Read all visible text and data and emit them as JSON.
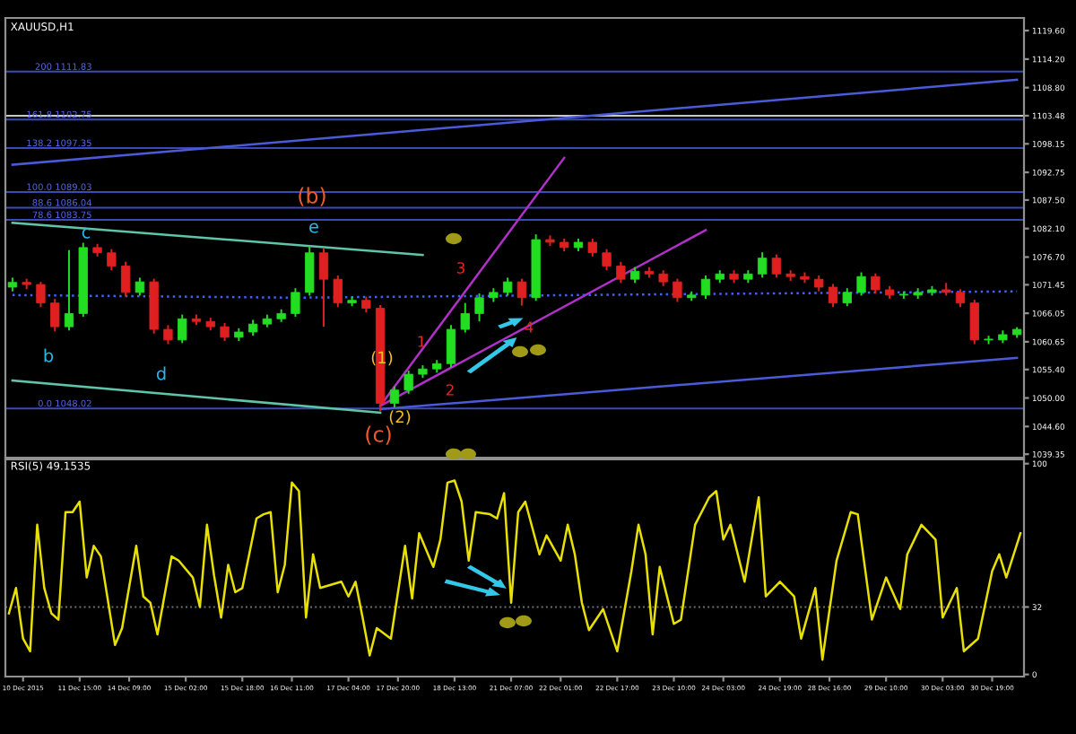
{
  "chart_data": [
    {
      "type": "candlestick",
      "title": "XAUUSD,H1",
      "tick_labels": "y",
      "categories": [
        null,
        null,
        null,
        null,
        null,
        null,
        null,
        null,
        null,
        null,
        null,
        null,
        null,
        null,
        null,
        null,
        null,
        null,
        null,
        null,
        null,
        null,
        null,
        null,
        null,
        null,
        null,
        null,
        null,
        null,
        null,
        null,
        null,
        null,
        null,
        null,
        null,
        null,
        null,
        null,
        null,
        null,
        null,
        null,
        null,
        null,
        null,
        null,
        null,
        null,
        null,
        null,
        null,
        null,
        null,
        null,
        null,
        null,
        null,
        null,
        null,
        null,
        null,
        null,
        null,
        null,
        null,
        null,
        null,
        null,
        null,
        null
      ],
      "ohlc": [
        [
          1071,
          1072.8,
          1070.2,
          1071.9
        ],
        [
          1071.9,
          1072.6,
          1070.6,
          1071.5
        ],
        [
          1071.5,
          1072,
          1067.2,
          1068
        ],
        [
          1068,
          1068.8,
          1062.6,
          1063.5
        ],
        [
          1063.5,
          1078,
          1062.8,
          1066
        ],
        [
          1066,
          1079.4,
          1065.4,
          1078.5
        ],
        [
          1078.5,
          1079.2,
          1076.8,
          1077.5
        ],
        [
          1077.5,
          1078.2,
          1074.2,
          1075
        ],
        [
          1075,
          1075.8,
          1069.2,
          1070
        ],
        [
          1070,
          1072.8,
          1069.4,
          1072
        ],
        [
          1072,
          1072.6,
          1062.2,
          1063
        ],
        [
          1063,
          1063.8,
          1060.2,
          1061
        ],
        [
          1061,
          1065.8,
          1060.4,
          1065
        ],
        [
          1065,
          1065.8,
          1063.8,
          1064.5
        ],
        [
          1064.5,
          1065.2,
          1062.8,
          1063.5
        ],
        [
          1063.5,
          1064.2,
          1060.8,
          1061.5
        ],
        [
          1061.5,
          1063.2,
          1060.8,
          1062.5
        ],
        [
          1062.5,
          1064.8,
          1061.8,
          1064
        ],
        [
          1064,
          1065.8,
          1063.4,
          1065
        ],
        [
          1065,
          1066.8,
          1064.4,
          1066
        ],
        [
          1066,
          1070.8,
          1065.4,
          1070
        ],
        [
          1070,
          1078.8,
          1069.4,
          1077.5
        ],
        [
          1077.5,
          1078.4,
          1063.5,
          1072.5
        ],
        [
          1072.5,
          1073.2,
          1067.2,
          1068
        ],
        [
          1068,
          1069.2,
          1067.4,
          1068.5
        ],
        [
          1068.5,
          1069.2,
          1066.2,
          1067
        ],
        [
          1067,
          1067.6,
          1047.5,
          1049
        ],
        [
          1049,
          1052.2,
          1048.2,
          1051.5
        ],
        [
          1051.5,
          1055.2,
          1050.8,
          1054.5
        ],
        [
          1054.5,
          1056.2,
          1053.8,
          1055.5
        ],
        [
          1055.5,
          1057.2,
          1054.8,
          1056.5
        ],
        [
          1056.5,
          1063.8,
          1055.8,
          1063
        ],
        [
          1063,
          1068,
          1062.4,
          1066
        ],
        [
          1066,
          1069.8,
          1064.5,
          1069
        ],
        [
          1069,
          1070.8,
          1068.2,
          1070
        ],
        [
          1070,
          1072.8,
          1069.4,
          1072
        ],
        [
          1072,
          1072.6,
          1067.5,
          1069
        ],
        [
          1069,
          1081,
          1068.4,
          1080
        ],
        [
          1080,
          1080.8,
          1078.8,
          1079.5
        ],
        [
          1079.5,
          1080.2,
          1077.8,
          1078.5
        ],
        [
          1078.5,
          1080.2,
          1077.8,
          1079.5
        ],
        [
          1079.5,
          1080.2,
          1076.8,
          1077.5
        ],
        [
          1077.5,
          1078.2,
          1074.2,
          1075
        ],
        [
          1075,
          1075.8,
          1071.8,
          1072.5
        ],
        [
          1072.5,
          1074.8,
          1071.8,
          1074
        ],
        [
          1074,
          1074.8,
          1072.8,
          1073.5
        ],
        [
          1073.5,
          1074.2,
          1071.2,
          1072
        ],
        [
          1072,
          1072.6,
          1068.2,
          1069
        ],
        [
          1069,
          1070.2,
          1068.4,
          1069.5
        ],
        [
          1069.5,
          1073.2,
          1068.8,
          1072.5
        ],
        [
          1072.5,
          1074.2,
          1071.8,
          1073.5
        ],
        [
          1073.5,
          1074.2,
          1071.8,
          1072.5
        ],
        [
          1072.5,
          1074.2,
          1071.8,
          1073.5
        ],
        [
          1073.5,
          1077.6,
          1072.8,
          1076.5
        ],
        [
          1076.5,
          1077.2,
          1072.8,
          1073.5
        ],
        [
          1073.5,
          1074.2,
          1072.2,
          1073
        ],
        [
          1073,
          1073.8,
          1071.8,
          1072.5
        ],
        [
          1072.5,
          1073.2,
          1070.2,
          1071
        ],
        [
          1071,
          1071.6,
          1067.2,
          1068
        ],
        [
          1068,
          1070.8,
          1067.4,
          1070
        ],
        [
          1070,
          1073.8,
          1069.4,
          1073
        ],
        [
          1073,
          1073.6,
          1069.8,
          1070.5
        ],
        [
          1070.5,
          1071.2,
          1068.8,
          1069.5
        ],
        [
          1069.5,
          1070.2,
          1068.8,
          1069.5
        ],
        [
          1069.5,
          1070.8,
          1068.8,
          1070
        ],
        [
          1070,
          1071.2,
          1069.4,
          1070.5
        ],
        [
          1070.5,
          1071.8,
          1069.4,
          1070
        ],
        [
          1070,
          1070.6,
          1067.2,
          1068
        ],
        [
          1068,
          1068.6,
          1060.2,
          1061
        ],
        [
          1061,
          1061.8,
          1060.2,
          1061
        ],
        [
          1061,
          1062.8,
          1060.4,
          1062
        ],
        [
          1062,
          1063.4,
          1061.4,
          1063
        ]
      ],
      "ylim": [
        1038.7,
        1122.0
      ],
      "yticks": [
        {
          "value": 1119.6,
          "label": "1119.60"
        },
        {
          "value": 1114.2,
          "label": "1114.20"
        },
        {
          "value": 1108.8,
          "label": "1108.80"
        },
        {
          "value": 1103.48,
          "label": "1103.48"
        },
        {
          "value": 1098.15,
          "label": "1098.15"
        },
        {
          "value": 1092.75,
          "label": "1092.75"
        },
        {
          "value": 1087.5,
          "label": "1087.50"
        },
        {
          "value": 1082.1,
          "label": "1082.10"
        },
        {
          "value": 1076.7,
          "label": "1076.70"
        },
        1071.45,
        1066.05,
        {
          "value": 1060.65,
          "label": "1060.65"
        },
        {
          "value": 1055.4,
          "label": "1055.40"
        },
        {
          "value": 1050.0,
          "label": "1050.00"
        },
        {
          "value": 1044.6,
          "label": "1044.60"
        },
        1039.35
      ],
      "series": [
        {
          "type": "line",
          "color": "#4a5ad8",
          "values": [
            1094.2,
            null,
            null,
            null,
            null,
            null,
            null,
            null,
            null,
            null,
            null,
            null,
            null,
            null,
            null,
            null,
            null,
            null,
            null,
            null,
            null,
            null,
            null,
            null,
            null,
            null,
            null,
            null,
            null,
            null,
            null,
            null,
            null,
            null,
            null,
            null,
            null,
            null,
            null,
            null,
            null,
            null,
            null,
            null,
            null,
            null,
            null,
            null,
            null,
            null,
            null,
            null,
            null,
            null,
            null,
            null,
            null,
            null,
            null,
            null,
            null,
            null,
            null,
            null,
            null,
            null,
            null,
            null,
            null,
            null,
            null,
            1110.3
          ]
        },
        {
          "type": "line",
          "color": "#4a5ad8",
          "values": [
            null,
            null,
            null,
            null,
            null,
            null,
            null,
            null,
            null,
            null,
            null,
            null,
            null,
            null,
            null,
            null,
            null,
            null,
            null,
            null,
            null,
            null,
            null,
            null,
            null,
            null,
            1047.9,
            null,
            null,
            null,
            null,
            null,
            null,
            null,
            null,
            null,
            null,
            null,
            null,
            null,
            null,
            null,
            null,
            null,
            null,
            null,
            null,
            null,
            null,
            null,
            null,
            null,
            null,
            null,
            null,
            null,
            null,
            null,
            null,
            null,
            null,
            null,
            null,
            null,
            null,
            null,
            null,
            null,
            null,
            null,
            null,
            1057.6
          ]
        },
        {
          "type": "line",
          "color": "#5fc4a8",
          "values": [
            1083.2,
            null,
            null,
            null,
            null,
            null,
            null,
            null,
            null,
            null,
            null,
            null,
            null,
            null,
            null,
            null,
            null,
            null,
            null,
            null,
            null,
            null,
            null,
            null,
            null,
            null,
            null,
            null,
            null,
            1077.1,
            null,
            null,
            null,
            null,
            null,
            null,
            null,
            null,
            null,
            null,
            null,
            null,
            null,
            null,
            null,
            null,
            null,
            null,
            null,
            null,
            null,
            null,
            null,
            null,
            null,
            null,
            null,
            null,
            null,
            null,
            null,
            null,
            null,
            null,
            null,
            null,
            null,
            null,
            null,
            null,
            null,
            null
          ]
        },
        {
          "type": "line",
          "color": "#5fc4a8",
          "values": [
            1053.3,
            null,
            null,
            null,
            null,
            null,
            null,
            null,
            null,
            null,
            null,
            null,
            null,
            null,
            null,
            null,
            null,
            null,
            null,
            null,
            null,
            null,
            null,
            null,
            null,
            null,
            1047.2,
            null,
            null,
            null,
            null,
            null,
            null,
            null,
            null,
            null,
            null,
            null,
            null,
            null,
            null,
            null,
            null,
            null,
            null,
            null,
            null,
            null,
            null,
            null,
            null,
            null,
            null,
            null,
            null,
            null,
            null,
            null,
            null,
            null,
            null,
            null,
            null,
            null,
            null,
            null,
            null,
            null,
            null,
            null,
            null,
            null
          ]
        },
        {
          "type": "line",
          "color": "#b030c8",
          "values": [
            null,
            null,
            null,
            null,
            null,
            null,
            null,
            null,
            null,
            null,
            null,
            null,
            null,
            null,
            null,
            null,
            null,
            null,
            null,
            null,
            null,
            null,
            null,
            null,
            null,
            null,
            1048.5,
            null,
            null,
            null,
            null,
            null,
            null,
            null,
            null,
            null,
            null,
            null,
            null,
            1095.5,
            null,
            null,
            null,
            null,
            null,
            null,
            null,
            null,
            null,
            null,
            null,
            null,
            null,
            null,
            null,
            null,
            null,
            null,
            null,
            null,
            null,
            null,
            null,
            null,
            null,
            null,
            null,
            null,
            null,
            null,
            null,
            null
          ]
        },
        {
          "type": "line",
          "color": "#b030c8",
          "values": [
            null,
            null,
            null,
            null,
            null,
            null,
            null,
            null,
            null,
            null,
            null,
            null,
            null,
            null,
            null,
            null,
            null,
            null,
            null,
            null,
            null,
            null,
            null,
            null,
            null,
            null,
            1048.5,
            null,
            null,
            null,
            null,
            null,
            null,
            null,
            null,
            null,
            null,
            null,
            null,
            null,
            null,
            null,
            null,
            null,
            null,
            null,
            null,
            null,
            null,
            1081.8,
            null,
            null,
            null,
            null,
            null,
            null,
            null,
            null,
            null,
            null,
            null,
            null,
            null,
            null,
            null,
            null,
            null,
            null,
            null,
            null,
            null,
            null
          ]
        },
        {
          "type": "line",
          "color": "#4060ff",
          "line_style": "dotted",
          "values": [
            1069.5,
            null,
            null,
            null,
            null,
            null,
            null,
            null,
            null,
            null,
            null,
            null,
            null,
            null,
            null,
            null,
            null,
            null,
            null,
            null,
            1069,
            null,
            null,
            null,
            null,
            null,
            null,
            null,
            null,
            null,
            null,
            null,
            null,
            null,
            null,
            null,
            null,
            null,
            null,
            null,
            1069.5,
            null,
            null,
            null,
            null,
            null,
            null,
            null,
            null,
            null,
            null,
            null,
            null,
            null,
            null,
            null,
            null,
            null,
            null,
            null,
            null,
            null,
            null,
            null,
            null,
            null,
            null,
            null,
            null,
            null,
            null,
            1070.2
          ]
        }
      ],
      "ref_lines": [
        {
          "axis": "y",
          "value": 1111.83,
          "label": "200 1111.83",
          "color": "#3a4bb8"
        },
        {
          "axis": "y",
          "value": 1102.75,
          "label": "161.8 1102.75",
          "color": "#3a4bb8"
        },
        {
          "axis": "y",
          "value": 1103.48,
          "color": "#c8c8c8"
        },
        {
          "axis": "y",
          "value": 1097.35,
          "label": "138.2 1097.35",
          "color": "#3a4bb8"
        },
        {
          "axis": "y",
          "value": 1089.03,
          "label": "100.0 1089.03",
          "color": "#3a4bb8"
        },
        {
          "axis": "y",
          "value": 1086.04,
          "label": "88.6 1086.04",
          "color": "#3a4bb8"
        },
        {
          "axis": "y",
          "value": 1083.75,
          "label": "78.6 1083.75",
          "color": "#3a4bb8"
        },
        {
          "axis": "y",
          "value": 1048.02,
          "label": "0.0 1048.02",
          "color": "#3a4bb8"
        }
      ],
      "annotations": [
        "b",
        "c",
        "d",
        "e",
        "(b)",
        "(c)",
        "(1)",
        "(2)",
        "1",
        "2",
        "3",
        "4"
      ]
    },
    {
      "type": "line",
      "title": "RSI(5) 49.1535",
      "ylim": [
        -1,
        102
      ],
      "yticks": [
        100,
        32,
        0
      ],
      "categories": [
        null,
        null,
        "10 Dec 2015",
        null,
        null,
        null,
        null,
        null,
        null,
        null,
        "11 Dec 15:00",
        null,
        null,
        null,
        null,
        null,
        null,
        "14 Dec 09:00",
        null,
        null,
        null,
        null,
        null,
        null,
        null,
        "15 Dec 02:00",
        null,
        null,
        null,
        null,
        null,
        null,
        null,
        "15 Dec 18:00",
        null,
        null,
        null,
        null,
        null,
        null,
        "16 Dec 11:00",
        null,
        null,
        null,
        null,
        null,
        null,
        null,
        "17 Dec 04:00",
        null,
        null,
        null,
        null,
        null,
        null,
        "17 Dec 20:00",
        null,
        null,
        null,
        null,
        null,
        null,
        null,
        "18 Dec 13:00",
        null,
        null,
        null,
        null,
        null,
        null,
        null,
        "21 Dec 07:00",
        null,
        null,
        null,
        null,
        null,
        null,
        "22 Dec 01:00",
        null,
        null,
        null,
        null,
        null,
        null,
        null,
        "22 Dec 17:00",
        null,
        null,
        null,
        null,
        null,
        null,
        null,
        "23 Dec 10:00",
        null,
        null,
        null,
        null,
        null,
        null,
        "24 Dec 03:00",
        null,
        null,
        null,
        null,
        null,
        null,
        null,
        "24 Dec 19:00",
        null,
        null,
        null,
        null,
        null,
        null,
        "28 Dec 16:00",
        null,
        null,
        null,
        null,
        null,
        null,
        null,
        "29 Dec 10:00",
        null,
        null,
        null,
        null,
        null,
        null,
        null,
        "30 Dec 03:00",
        null,
        null,
        null,
        null,
        null,
        null,
        "30 Dec 19:00",
        null,
        null,
        null,
        null
      ],
      "ref_lines": [
        {
          "axis": "y",
          "value": 32,
          "color": "#707070",
          "line_style": "dotted"
        }
      ],
      "series": [
        {
          "color": "#e8e000",
          "values": [
            29,
            41,
            17,
            11,
            71,
            41,
            29,
            26,
            77,
            77,
            82,
            46,
            61,
            56,
            null,
            14,
            22,
            null,
            61,
            37,
            34,
            19,
            null,
            56,
            54,
            null,
            46,
            32,
            71,
            47,
            27,
            52,
            39,
            41,
            null,
            74,
            76,
            77,
            39,
            52,
            91,
            87,
            27,
            57,
            41,
            null,
            null,
            44,
            37,
            44,
            27,
            9,
            22,
            null,
            17,
            null,
            61,
            36,
            67,
            null,
            51,
            64,
            91,
            92,
            82,
            54,
            77,
            null,
            76,
            74,
            86,
            34,
            77,
            82,
            null,
            57,
            66,
            null,
            54,
            71,
            57,
            34,
            21,
            null,
            31,
            null,
            11,
            null,
            49,
            71,
            57,
            19,
            51,
            null,
            24,
            26,
            null,
            71,
            null,
            84,
            87,
            64,
            71,
            null,
            44,
            64,
            84,
            37,
            null,
            44,
            null,
            37,
            17,
            null,
            41,
            7,
            null,
            54,
            null,
            77,
            76,
            null,
            26,
            null,
            46,
            null,
            31,
            57,
            null,
            71,
            null,
            64,
            27,
            null,
            41,
            11,
            null,
            17,
            null,
            49,
            57,
            46,
            null,
            67
          ]
        }
      ]
    }
  ]
}
